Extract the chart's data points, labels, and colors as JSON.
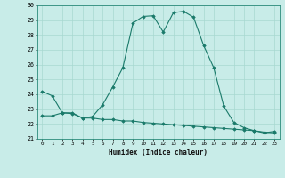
{
  "xlabel": "Humidex (Indice chaleur)",
  "background_color": "#c8ece8",
  "grid_color": "#a8d8d0",
  "line_color": "#1a7a6a",
  "xlim": [
    -0.5,
    23.5
  ],
  "ylim": [
    21,
    30
  ],
  "xticks": [
    0,
    1,
    2,
    3,
    4,
    5,
    6,
    7,
    8,
    9,
    10,
    11,
    12,
    13,
    14,
    15,
    16,
    17,
    18,
    19,
    20,
    21,
    22,
    23
  ],
  "yticks": [
    21,
    22,
    23,
    24,
    25,
    26,
    27,
    28,
    29,
    30
  ],
  "series1_x": [
    0,
    1,
    2,
    3,
    4,
    5,
    6,
    7,
    8,
    9,
    10,
    11,
    12,
    13,
    14,
    15,
    16,
    17,
    18,
    19,
    20,
    21,
    22,
    23
  ],
  "series1_y": [
    24.2,
    23.9,
    22.75,
    22.75,
    22.4,
    22.5,
    23.3,
    24.5,
    25.8,
    28.8,
    29.25,
    29.3,
    28.2,
    29.5,
    29.6,
    29.2,
    27.3,
    25.8,
    23.2,
    22.1,
    21.75,
    21.55,
    21.4,
    21.5
  ],
  "series2_x": [
    0,
    1,
    2,
    3,
    4,
    5,
    6,
    7,
    8,
    9,
    10,
    11,
    12,
    13,
    14,
    15,
    16,
    17,
    18,
    19,
    20,
    21,
    22,
    23
  ],
  "series2_y": [
    22.55,
    22.55,
    22.75,
    22.7,
    22.4,
    22.4,
    22.3,
    22.3,
    22.2,
    22.2,
    22.1,
    22.05,
    22.0,
    21.95,
    21.9,
    21.85,
    21.8,
    21.75,
    21.7,
    21.65,
    21.6,
    21.55,
    21.45,
    21.4
  ]
}
